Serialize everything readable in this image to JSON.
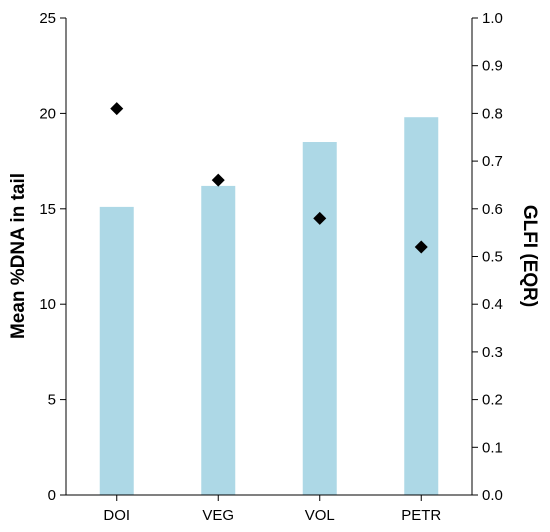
{
  "chart_data": {
    "type": "bar",
    "categories": [
      "DOI",
      "VEG",
      "VOL",
      "PETR"
    ],
    "series": [
      {
        "values": [
          15.1,
          16.2,
          18.5,
          19.8
        ],
        "axis": "left",
        "mark": "bar",
        "color": "#add8e6"
      },
      {
        "values": [
          0.81,
          0.66,
          0.58,
          0.52
        ],
        "axis": "right",
        "mark": "diamond",
        "color": "#000000"
      }
    ],
    "ylabel": "Mean %DNA in tail",
    "ylim": [
      0,
      25
    ],
    "yticks": [
      "0",
      "5",
      "10",
      "15",
      "20",
      "25"
    ],
    "y2label": "GLFI (EQR)",
    "y2lim": [
      0,
      1
    ],
    "y2ticks": [
      "0.0",
      "0.1",
      "0.2",
      "0.3",
      "0.4",
      "0.5",
      "0.6",
      "0.7",
      "0.8",
      "0.9",
      "1.0"
    ],
    "grid": false
  }
}
